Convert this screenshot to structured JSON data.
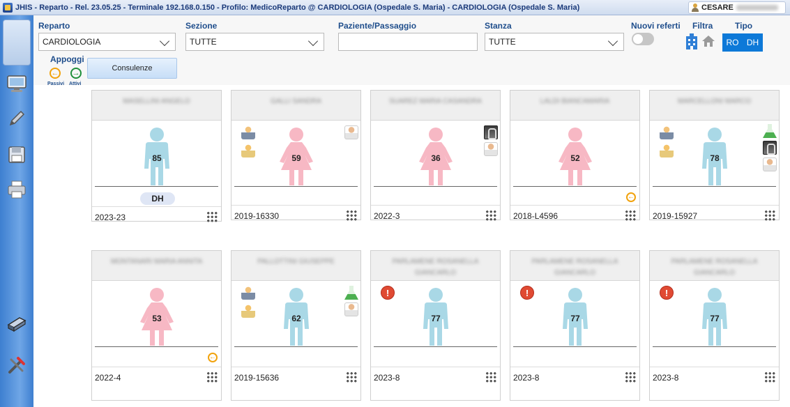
{
  "window": {
    "title": "JHIS - Reparto - Rel. 23.05.25 - Terminale 192.168.0.150 - Profilo: MedicoReparto @ CARDIOLOGIA (Ospedale S. Maria) - CARDIOLOGIA (Ospedale S. Maria)",
    "user": "CESARE"
  },
  "filters": {
    "reparto_label": "Reparto",
    "reparto_value": "CARDIOLOGIA",
    "sezione_label": "Sezione",
    "sezione_value": "TUTTE",
    "paziente_label": "Paziente/Passaggio",
    "paziente_value": "",
    "stanza_label": "Stanza",
    "stanza_value": "TUTTE",
    "nuovi_referti_label": "Nuovi referti",
    "filtra_label": "Filtra",
    "tipo_label": "Tipo",
    "tipo_ro": "RO",
    "tipo_dh": "DH",
    "appoggi_label": "Appoggi",
    "passivi_label": "Passivi",
    "attivi_label": "Attivi",
    "consulenze_label": "Consulenze"
  },
  "colors": {
    "male": "#a9d8e6",
    "female": "#f7b8c4",
    "accent": "#0d79d8"
  },
  "patients": [
    {
      "name": "MASELLINI ANGELO",
      "gender": "male",
      "age": "85",
      "code": "2023-23",
      "badge": "DH"
    },
    {
      "name": "GALLI SANDRA",
      "gender": "female",
      "age": "59",
      "code": "2019-16330"
    },
    {
      "name": "SUAREZ MARIA CASANDRA",
      "gender": "female",
      "age": "36",
      "code": "2022-3"
    },
    {
      "name": "LALDI BIANCAMARIA",
      "gender": "female",
      "age": "52",
      "code": "2018-L4596"
    },
    {
      "name": "MARCELLONI MARCO",
      "gender": "male",
      "age": "78",
      "code": "2019-15927"
    },
    {
      "name": "MONTANARI MARIA ANNITA",
      "gender": "female",
      "age": "53",
      "code": "2022-4"
    },
    {
      "name": "PALLOTTINI GIUSEPPE",
      "gender": "male",
      "age": "62",
      "code": "2019-15636"
    },
    {
      "name": "PARLAMENE ROSANELLA GIANCARLO",
      "gender": "male",
      "age": "77",
      "code": "2023-8"
    },
    {
      "name": "PARLAMENE ROSANELLA GIANCARLO",
      "gender": "male",
      "age": "77",
      "code": "2023-8"
    },
    {
      "name": "PARLAMENE ROSANELLA GIANCARLO",
      "gender": "male",
      "age": "77",
      "code": "2023-8"
    }
  ]
}
